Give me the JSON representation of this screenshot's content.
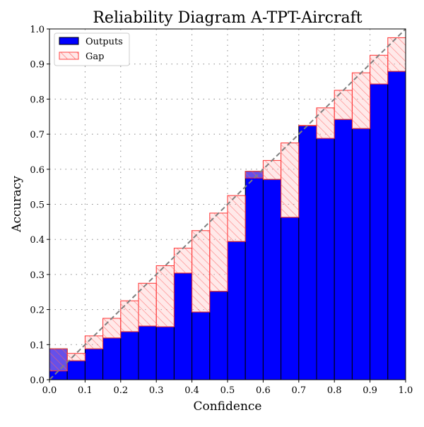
{
  "chart_data": {
    "type": "bar",
    "title": "Reliability Diagram A-TPT-Aircraft",
    "xlabel": "Confidence",
    "ylabel": "Accuracy",
    "xlim": [
      0,
      1
    ],
    "ylim": [
      0,
      1
    ],
    "xticks": [
      "0.0",
      "0.1",
      "0.2",
      "0.3",
      "0.4",
      "0.5",
      "0.6",
      "0.7",
      "0.8",
      "0.9",
      "1.0"
    ],
    "yticks": [
      "0.0",
      "0.1",
      "0.2",
      "0.3",
      "0.4",
      "0.5",
      "0.6",
      "0.7",
      "0.8",
      "0.9",
      "1.0"
    ],
    "grid": true,
    "legend_position": "top-left",
    "bin_width": 0.05,
    "bin_centers": [
      0.025,
      0.075,
      0.125,
      0.175,
      0.225,
      0.275,
      0.325,
      0.375,
      0.425,
      0.475,
      0.525,
      0.575,
      0.625,
      0.675,
      0.725,
      0.775,
      0.825,
      0.875,
      0.925,
      0.975
    ],
    "series": [
      {
        "name": "Outputs",
        "color": "#0000ff",
        "values": [
          0.088,
          0.054,
          0.088,
          0.119,
          0.137,
          0.153,
          0.151,
          0.304,
          0.193,
          0.252,
          0.394,
          0.594,
          0.571,
          0.463,
          0.724,
          0.688,
          0.742,
          0.716,
          0.843,
          0.879
        ]
      },
      {
        "name": "Gap",
        "color": "#ff0000",
        "pattern": "hatched",
        "description_of_values": "span between accuracy and bin center"
      }
    ],
    "diagonal": {
      "color": "#808080",
      "style": "dashed"
    }
  }
}
